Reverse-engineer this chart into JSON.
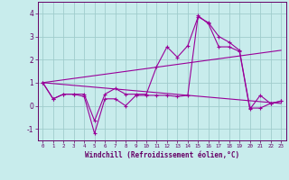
{
  "title": "",
  "xlabel": "Windchill (Refroidissement éolien,°C)",
  "bg_color": "#c8ecec",
  "grid_color": "#a0cccc",
  "line_color": "#990099",
  "spine_color": "#660066",
  "label_color": "#660066",
  "xlim": [
    -0.5,
    23.5
  ],
  "ylim": [
    -1.5,
    4.5
  ],
  "xticks": [
    0,
    1,
    2,
    3,
    4,
    5,
    6,
    7,
    8,
    9,
    10,
    11,
    12,
    13,
    14,
    15,
    16,
    17,
    18,
    19,
    20,
    21,
    22,
    23
  ],
  "yticks": [
    -1,
    0,
    1,
    2,
    3,
    4
  ],
  "series1_x": [
    0,
    1,
    2,
    3,
    4,
    5,
    6,
    7,
    8,
    9,
    10,
    11,
    12,
    13,
    14,
    15,
    16,
    17,
    18,
    19,
    20,
    21,
    22,
    23
  ],
  "series1_y": [
    1.0,
    0.3,
    0.5,
    0.5,
    0.5,
    -0.65,
    0.5,
    0.75,
    0.5,
    0.5,
    0.5,
    1.7,
    2.55,
    2.1,
    2.6,
    3.85,
    3.6,
    3.0,
    2.75,
    2.4,
    -0.1,
    -0.1,
    0.1,
    0.2
  ],
  "series2_x": [
    0,
    1,
    2,
    3,
    4,
    5,
    6,
    7,
    8,
    9,
    10,
    11,
    12,
    13,
    14,
    15,
    16,
    17,
    18,
    19,
    20,
    21,
    22,
    23
  ],
  "series2_y": [
    1.0,
    0.3,
    0.5,
    0.5,
    0.4,
    -1.2,
    0.3,
    0.3,
    0.0,
    0.45,
    0.45,
    0.45,
    0.45,
    0.4,
    0.45,
    3.9,
    3.55,
    2.55,
    2.55,
    2.35,
    -0.15,
    0.45,
    0.1,
    0.2
  ],
  "trend1_x": [
    0,
    23
  ],
  "trend1_y": [
    1.0,
    2.4
  ],
  "trend2_x": [
    0,
    23
  ],
  "trend2_y": [
    1.0,
    0.1
  ]
}
